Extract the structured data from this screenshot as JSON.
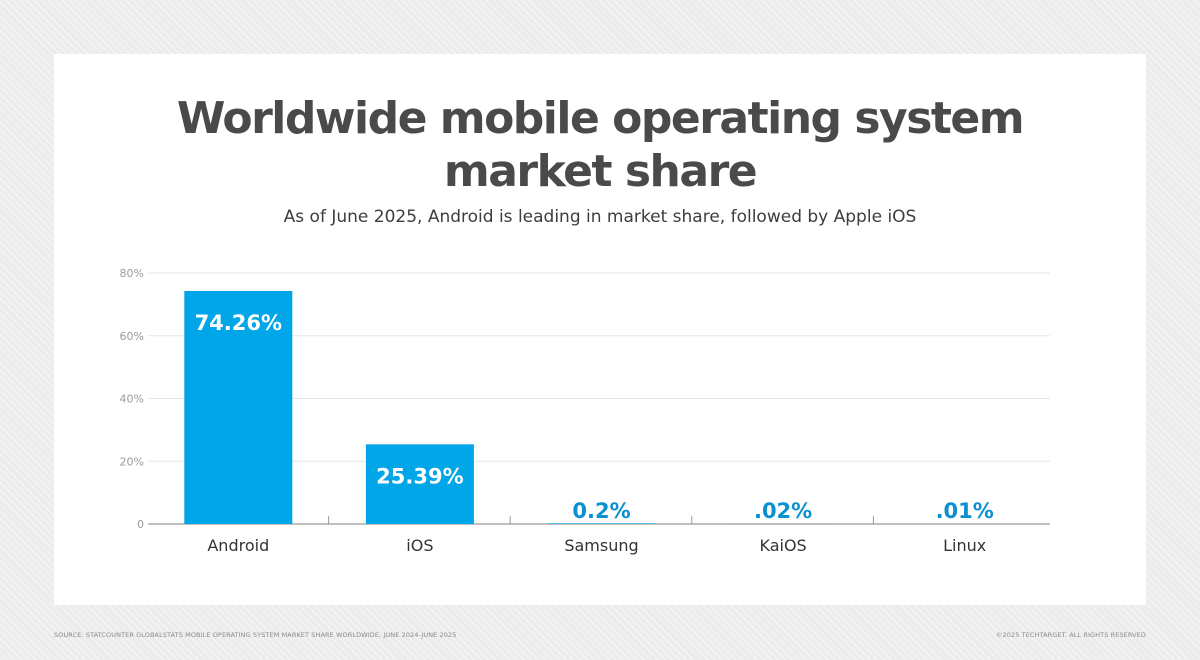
{
  "header": {
    "title": "Worldwide mobile operating system market share",
    "subtitle": "As of June 2025, Android is leading in market share, followed by Apple iOS"
  },
  "footer": {
    "source": "SOURCE: STATCOUNTER GLOBALSTATS MOBILE OPERATING SYSTEM MARKET SHARE WORLDWIDE, JUNE 2024-JUNE 2025",
    "copyright": "©2025 TECHTARGET. ALL RIGHTS RESERVED"
  },
  "colors": {
    "bar": "#00a6e8",
    "label_on_bar": "#ffffff",
    "label_above_bar": "#0a8fd0",
    "grid": "#e6e6e6",
    "axis": "#9a9a9a",
    "tick_text": "#9a9a9a",
    "category_text": "#333333"
  },
  "chart_data": {
    "type": "bar",
    "categories": [
      "Android",
      "iOS",
      "Samsung",
      "KaiOS",
      "Linux"
    ],
    "values": [
      74.26,
      25.39,
      0.2,
      0.02,
      0.01
    ],
    "data_labels": [
      "74.26%",
      "25.39%",
      "0.2%",
      ".02%",
      ".01%"
    ],
    "y_ticks": [
      0,
      20,
      40,
      60,
      80
    ],
    "y_tick_labels": [
      "0",
      "20%",
      "40%",
      "60%",
      "80%"
    ],
    "ylim": [
      0,
      80
    ],
    "grid": true,
    "legend": "none"
  }
}
